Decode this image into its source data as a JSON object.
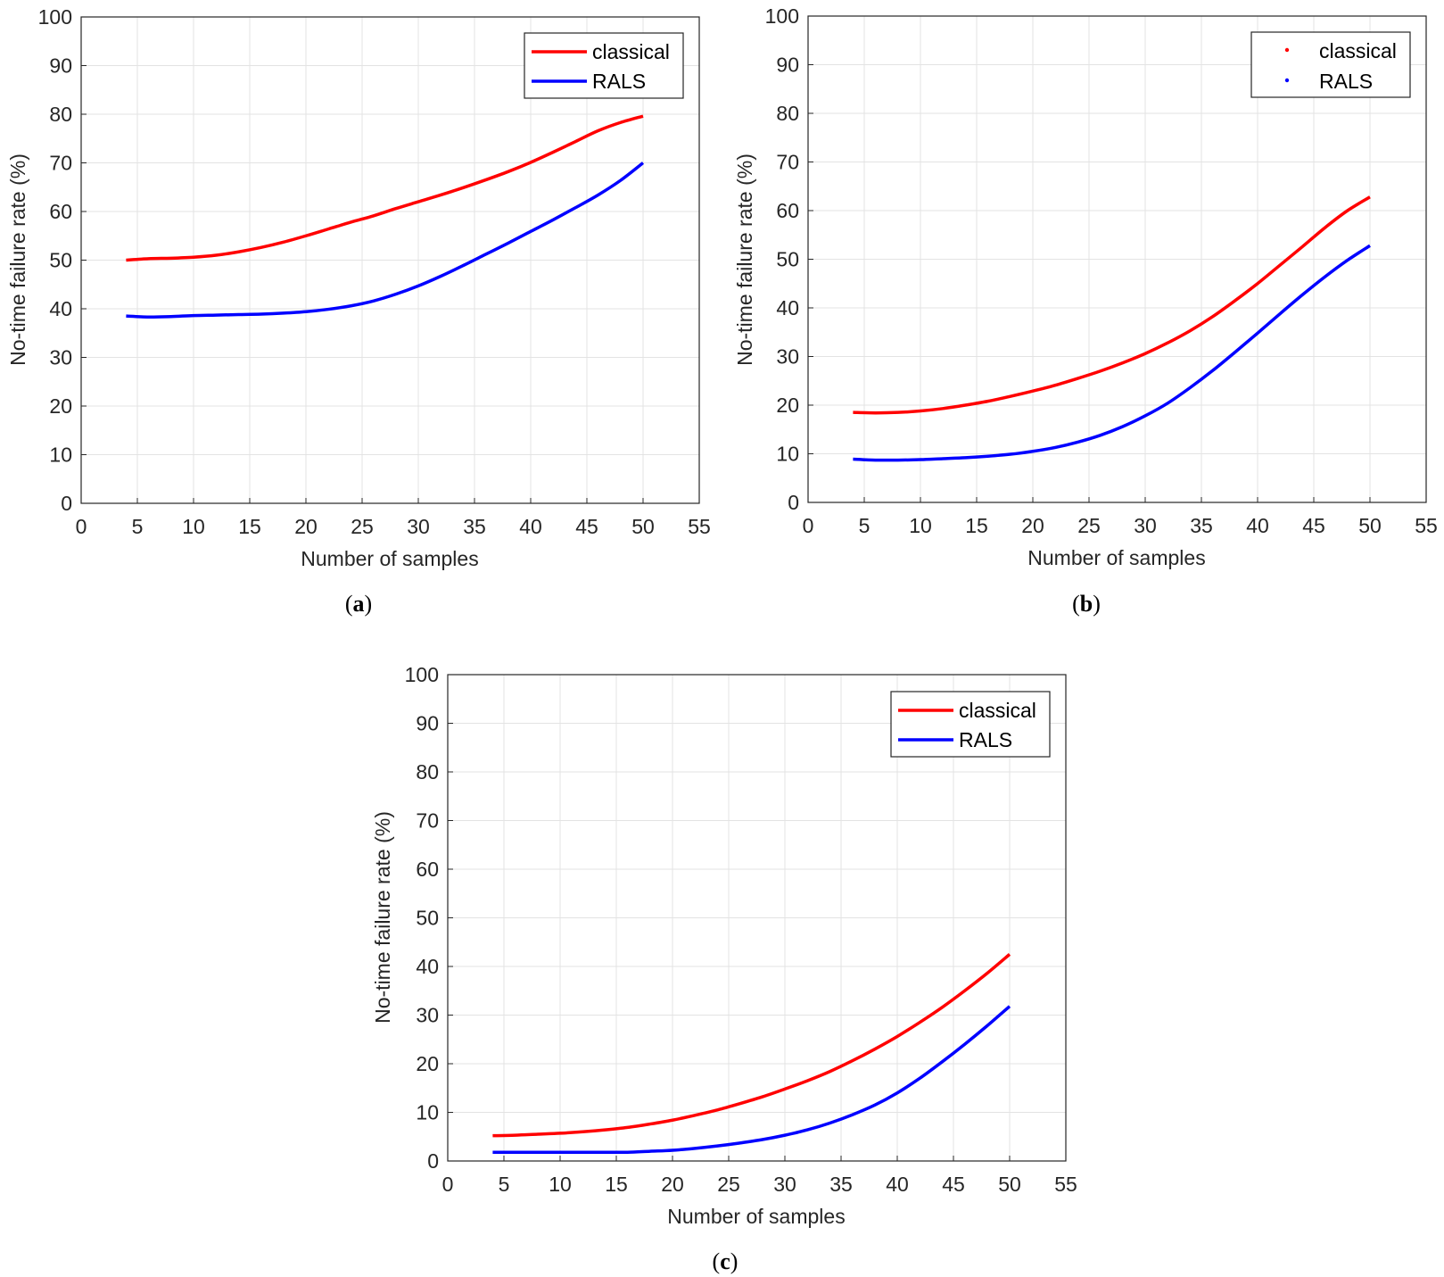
{
  "chart_data": [
    {
      "panel": "a",
      "type": "line",
      "caption": {
        "open": "(",
        "letter": "a",
        "close": ")"
      },
      "xlabel": "Number of samples",
      "ylabel": "No-time failure rate (%)",
      "xlim": [
        0,
        55
      ],
      "ylim": [
        0,
        100
      ],
      "xticks": [
        0,
        5,
        10,
        15,
        20,
        25,
        30,
        35,
        40,
        45,
        50,
        55
      ],
      "yticks": [
        0,
        10,
        20,
        30,
        40,
        50,
        60,
        70,
        80,
        90,
        100
      ],
      "grid": true,
      "legend": {
        "position": "top-right",
        "marker": "line"
      },
      "series": [
        {
          "name": "classical",
          "color": "#ff0000",
          "x": [
            4,
            6,
            8,
            10,
            12,
            14,
            16,
            18,
            20,
            22,
            24,
            26,
            28,
            30,
            32,
            34,
            36,
            38,
            40,
            42,
            44,
            46,
            48,
            50
          ],
          "y": [
            50.0,
            50.3,
            50.4,
            50.6,
            51.0,
            51.7,
            52.6,
            53.7,
            55.0,
            56.4,
            57.8,
            59.1,
            60.6,
            62.0,
            63.4,
            64.9,
            66.5,
            68.2,
            70.1,
            72.2,
            74.4,
            76.6,
            78.3,
            79.6
          ]
        },
        {
          "name": "RALS",
          "color": "#0000ff",
          "x": [
            4,
            6,
            8,
            10,
            12,
            14,
            16,
            18,
            20,
            22,
            24,
            26,
            28,
            30,
            32,
            34,
            36,
            38,
            40,
            42,
            44,
            46,
            48,
            50
          ],
          "y": [
            38.5,
            38.3,
            38.4,
            38.6,
            38.7,
            38.8,
            38.9,
            39.1,
            39.4,
            39.9,
            40.6,
            41.6,
            43.0,
            44.7,
            46.7,
            48.9,
            51.2,
            53.5,
            55.9,
            58.3,
            60.8,
            63.4,
            66.4,
            70.0
          ]
        }
      ]
    },
    {
      "panel": "b",
      "type": "line",
      "caption": {
        "open": "(",
        "letter": "b",
        "close": ")"
      },
      "xlabel": "Number of samples",
      "ylabel": "No-time failure rate (%)",
      "xlim": [
        0,
        55
      ],
      "ylim": [
        0,
        100
      ],
      "xticks": [
        0,
        5,
        10,
        15,
        20,
        25,
        30,
        35,
        40,
        45,
        50,
        55
      ],
      "yticks": [
        0,
        10,
        20,
        30,
        40,
        50,
        60,
        70,
        80,
        90,
        100
      ],
      "grid": true,
      "legend": {
        "position": "top-right",
        "marker": "dot"
      },
      "series": [
        {
          "name": "classical",
          "color": "#ff0000",
          "x": [
            4,
            6,
            8,
            10,
            12,
            14,
            16,
            18,
            20,
            22,
            24,
            26,
            28,
            30,
            32,
            34,
            36,
            38,
            40,
            42,
            44,
            46,
            48,
            50
          ],
          "y": [
            18.5,
            18.4,
            18.5,
            18.8,
            19.3,
            20.0,
            20.8,
            21.8,
            22.9,
            24.1,
            25.5,
            27.0,
            28.7,
            30.6,
            32.8,
            35.3,
            38.2,
            41.5,
            45.0,
            48.8,
            52.6,
            56.5,
            60.0,
            62.8
          ]
        },
        {
          "name": "RALS",
          "color": "#0000ff",
          "x": [
            4,
            6,
            8,
            10,
            12,
            14,
            16,
            18,
            20,
            22,
            24,
            26,
            28,
            30,
            32,
            34,
            36,
            38,
            40,
            42,
            44,
            46,
            48,
            50
          ],
          "y": [
            8.9,
            8.7,
            8.7,
            8.8,
            9.0,
            9.2,
            9.5,
            9.9,
            10.5,
            11.3,
            12.4,
            13.8,
            15.6,
            17.8,
            20.4,
            23.6,
            27.1,
            30.9,
            34.8,
            38.8,
            42.7,
            46.4,
            49.8,
            52.8
          ]
        }
      ]
    },
    {
      "panel": "c",
      "type": "line",
      "caption": {
        "open": "(",
        "letter": "c",
        "close": ")"
      },
      "xlabel": "Number of samples",
      "ylabel": "No-time failure rate (%)",
      "xlim": [
        0,
        55
      ],
      "ylim": [
        0,
        100
      ],
      "xticks": [
        0,
        5,
        10,
        15,
        20,
        25,
        30,
        35,
        40,
        45,
        50,
        55
      ],
      "yticks": [
        0,
        10,
        20,
        30,
        40,
        50,
        60,
        70,
        80,
        90,
        100
      ],
      "grid": true,
      "legend": {
        "position": "top-right",
        "marker": "line"
      },
      "series": [
        {
          "name": "classical",
          "color": "#ff0000",
          "x": [
            4,
            6,
            8,
            10,
            12,
            14,
            16,
            18,
            20,
            22,
            24,
            26,
            28,
            30,
            32,
            34,
            36,
            38,
            40,
            42,
            44,
            46,
            48,
            50
          ],
          "y": [
            5.2,
            5.3,
            5.5,
            5.7,
            6.0,
            6.4,
            6.9,
            7.6,
            8.4,
            9.4,
            10.5,
            11.8,
            13.2,
            14.8,
            16.5,
            18.4,
            20.6,
            23.0,
            25.6,
            28.5,
            31.6,
            35.0,
            38.6,
            42.5
          ]
        },
        {
          "name": "RALS",
          "color": "#0000ff",
          "x": [
            4,
            6,
            8,
            10,
            12,
            14,
            16,
            18,
            20,
            22,
            24,
            26,
            28,
            30,
            32,
            34,
            36,
            38,
            40,
            42,
            44,
            46,
            48,
            50
          ],
          "y": [
            1.8,
            1.8,
            1.8,
            1.8,
            1.8,
            1.8,
            1.8,
            2.0,
            2.2,
            2.6,
            3.1,
            3.7,
            4.4,
            5.3,
            6.4,
            7.8,
            9.5,
            11.5,
            14.0,
            17.0,
            20.4,
            24.0,
            27.8,
            31.8
          ]
        }
      ]
    }
  ]
}
